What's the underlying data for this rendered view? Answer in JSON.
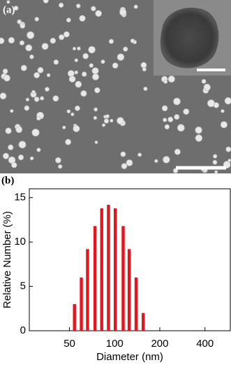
{
  "image": {
    "label": "(a)"
  },
  "chart_data": {
    "type": "bar",
    "panel_label": "(b)",
    "xlabel": "Diameter (nm)",
    "ylabel": "Relative Number (%)",
    "x": [
      54,
      60,
      66,
      74,
      82,
      91,
      101,
      114,
      125,
      139,
      155
    ],
    "values": [
      3,
      6,
      9.2,
      11.8,
      13.8,
      14.2,
      13.8,
      11.8,
      9.2,
      6,
      2
    ],
    "color": "#e8141c",
    "xscale": "log",
    "xlim": [
      27,
      590
    ],
    "xticks": [
      50,
      100,
      200,
      400
    ],
    "ylim": [
      0,
      16
    ],
    "yticks": [
      0,
      5,
      10,
      15
    ]
  }
}
